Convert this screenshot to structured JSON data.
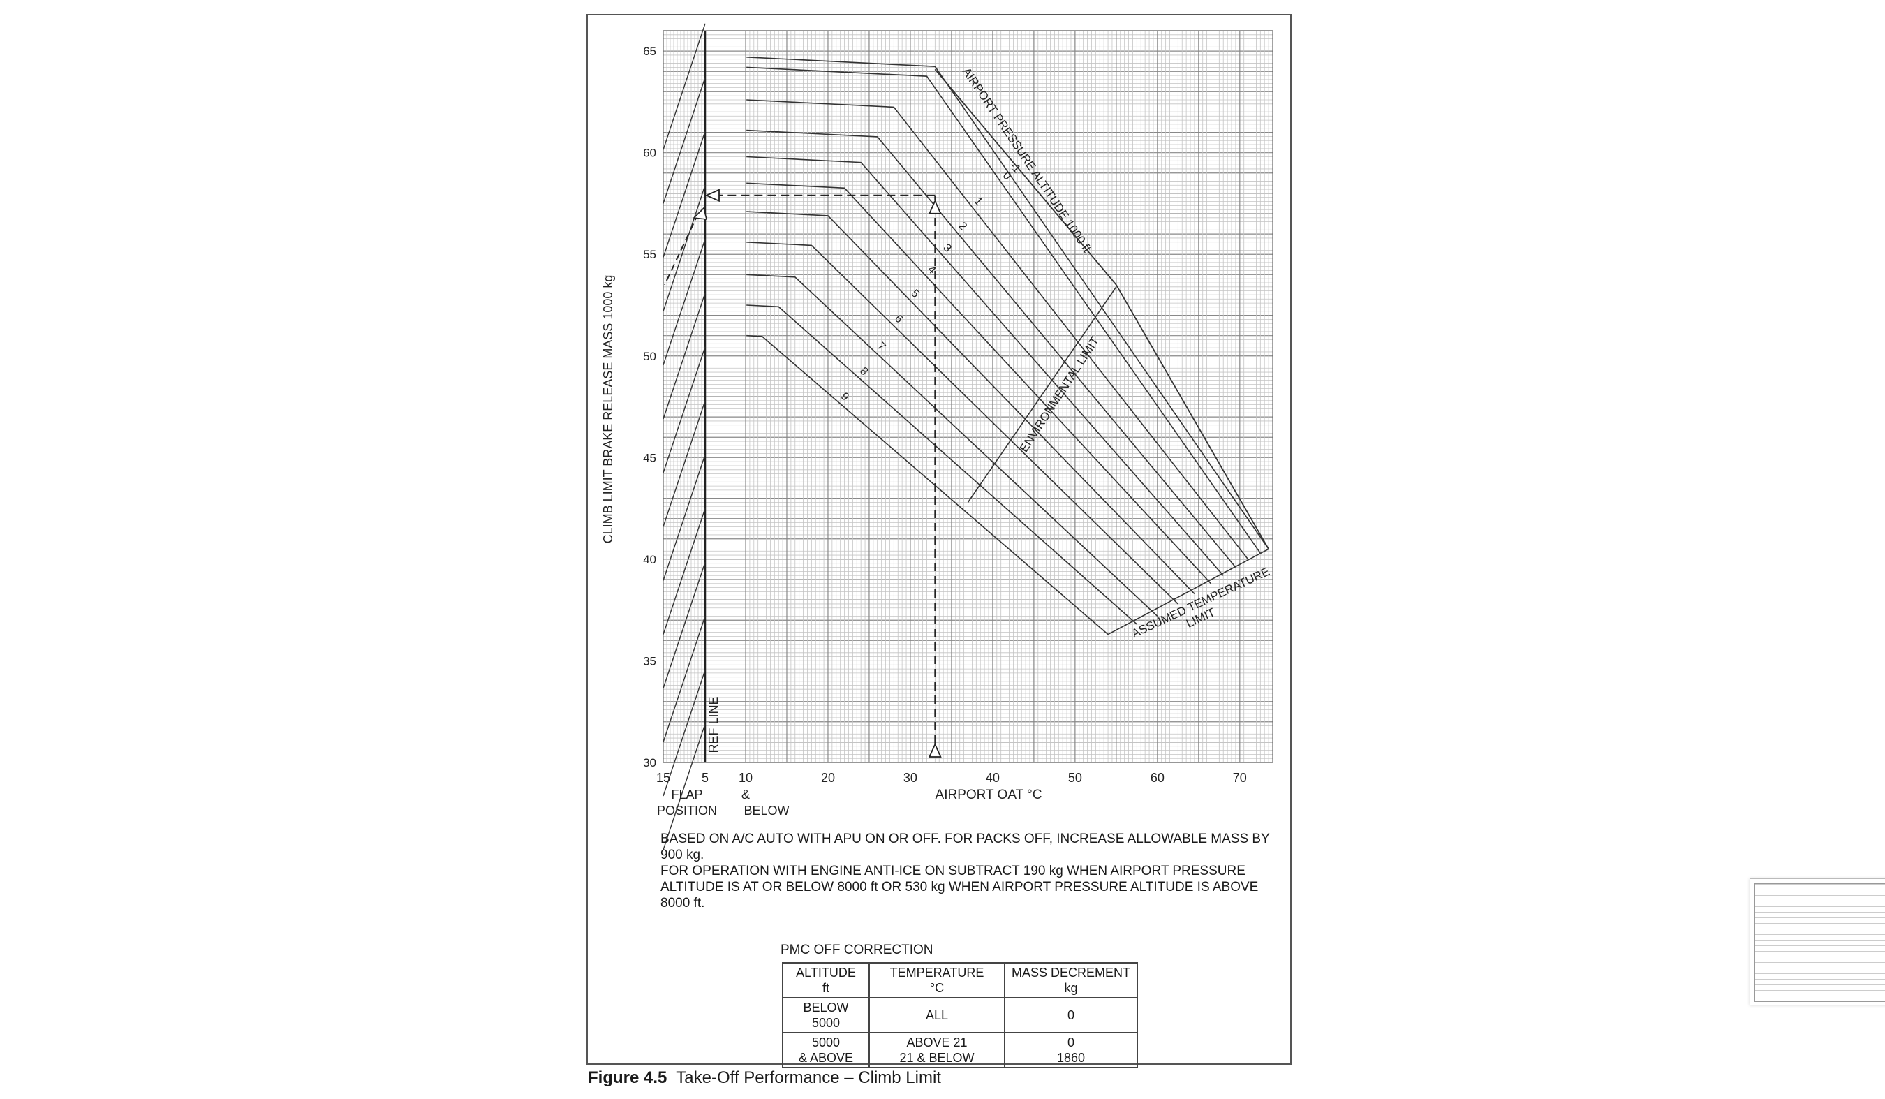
{
  "figure": {
    "label": "Figure 4.5",
    "title": "Take-Off Performance – Climb Limit"
  },
  "notes": {
    "line1": "BASED ON A/C AUTO  WITH APU ON OR OFF.   FOR PACKS OFF, INCREASE ALLOWABLE MASS BY 900 kg.",
    "line2": "FOR OPERATION WITH ENGINE ANTI-ICE ON SUBTRACT 190 kg WHEN AIRPORT PRESSURE ALTITUDE IS AT OR BELOW 8000 ft OR 530 kg WHEN AIRPORT PRESSURE ALTITUDE IS ABOVE 8000 ft."
  },
  "pmc": {
    "title": "PMC OFF CORRECTION",
    "headers": [
      "ALTITUDE\nft",
      "TEMPERATURE\n°C",
      "MASS DECREMENT\nkg"
    ],
    "header_lines": [
      [
        "ALTITUDE",
        "ft"
      ],
      [
        "TEMPERATURE",
        "°C"
      ],
      [
        "MASS DECREMENT",
        "kg"
      ]
    ],
    "rows": [
      [
        [
          "BELOW 5000"
        ],
        [
          "ALL"
        ],
        [
          "0"
        ]
      ],
      [
        [
          "5000",
          "& ABOVE"
        ],
        [
          "ABOVE 21",
          "21 & BELOW"
        ],
        [
          "0",
          "1860"
        ]
      ]
    ]
  },
  "chart_data": {
    "type": "line",
    "ylabel": "CLIMB LIMIT BRAKE RELEASE MASS  1000 kg",
    "xlabel": "AIRPORT OAT °C",
    "flap_label": [
      "FLAP",
      "POSITION"
    ],
    "below_label": [
      "&",
      "BELOW"
    ],
    "ref_line_label": "REF LINE",
    "ylim": [
      30,
      66
    ],
    "y_ticks": [
      "30",
      "35",
      "40",
      "45",
      "50",
      "55",
      "60",
      "65"
    ],
    "flap_ticks": [
      "15",
      "5"
    ],
    "x_ticks": [
      "10",
      "20",
      "30",
      "40",
      "50",
      "60",
      "70"
    ],
    "xlim": [
      10,
      74
    ],
    "grid": true,
    "curve_labels": {
      "pressure_altitude": "AIRPORT PRESSURE ALTITUDE  1000 ft",
      "environmental": "ENVIRONMENTAL LIMIT",
      "assumed_temp": [
        "ASSUMED TEMPERATURE",
        "LIMIT"
      ]
    },
    "series": [
      {
        "name": "-1",
        "flat": 64.7,
        "break_oat": 33,
        "end": [
          73.5,
          40.5
        ]
      },
      {
        "name": "0",
        "flat": 64.2,
        "break_oat": 32,
        "end": [
          72.5,
          40.3
        ]
      },
      {
        "name": "1",
        "flat": 62.6,
        "break_oat": 28,
        "end": [
          71,
          40.0
        ]
      },
      {
        "name": "2",
        "flat": 61.1,
        "break_oat": 26,
        "end": [
          69.5,
          39.6
        ]
      },
      {
        "name": "3",
        "flat": 59.8,
        "break_oat": 24,
        "end": [
          68,
          39.2
        ]
      },
      {
        "name": "4",
        "flat": 58.5,
        "break_oat": 22,
        "end": [
          66.5,
          38.8
        ]
      },
      {
        "name": "5",
        "flat": 57.1,
        "break_oat": 20,
        "end": [
          64.5,
          38.3
        ]
      },
      {
        "name": "6",
        "flat": 55.6,
        "break_oat": 18,
        "end": [
          62.5,
          37.8
        ]
      },
      {
        "name": "7",
        "flat": 54.0,
        "break_oat": 16,
        "end": [
          60,
          37.2
        ]
      },
      {
        "name": "8",
        "flat": 52.5,
        "break_oat": 14,
        "end": [
          57.5,
          36.8
        ]
      },
      {
        "name": "9",
        "flat": 51.0,
        "break_oat": 12,
        "end": [
          54,
          36.3
        ]
      }
    ],
    "environmental_limit": [
      [
        37,
        42.8
      ],
      [
        55,
        53.4
      ]
    ],
    "assumed_temperature_limit": [
      [
        54,
        36.3
      ],
      [
        73.5,
        40.5
      ]
    ],
    "upper_envelope": [
      [
        33,
        64.1
      ],
      [
        55,
        53.5
      ],
      [
        73.5,
        40.5
      ]
    ],
    "example": {
      "oat": 33,
      "mass": 57.9,
      "flap5_mass": 57.0
    }
  }
}
